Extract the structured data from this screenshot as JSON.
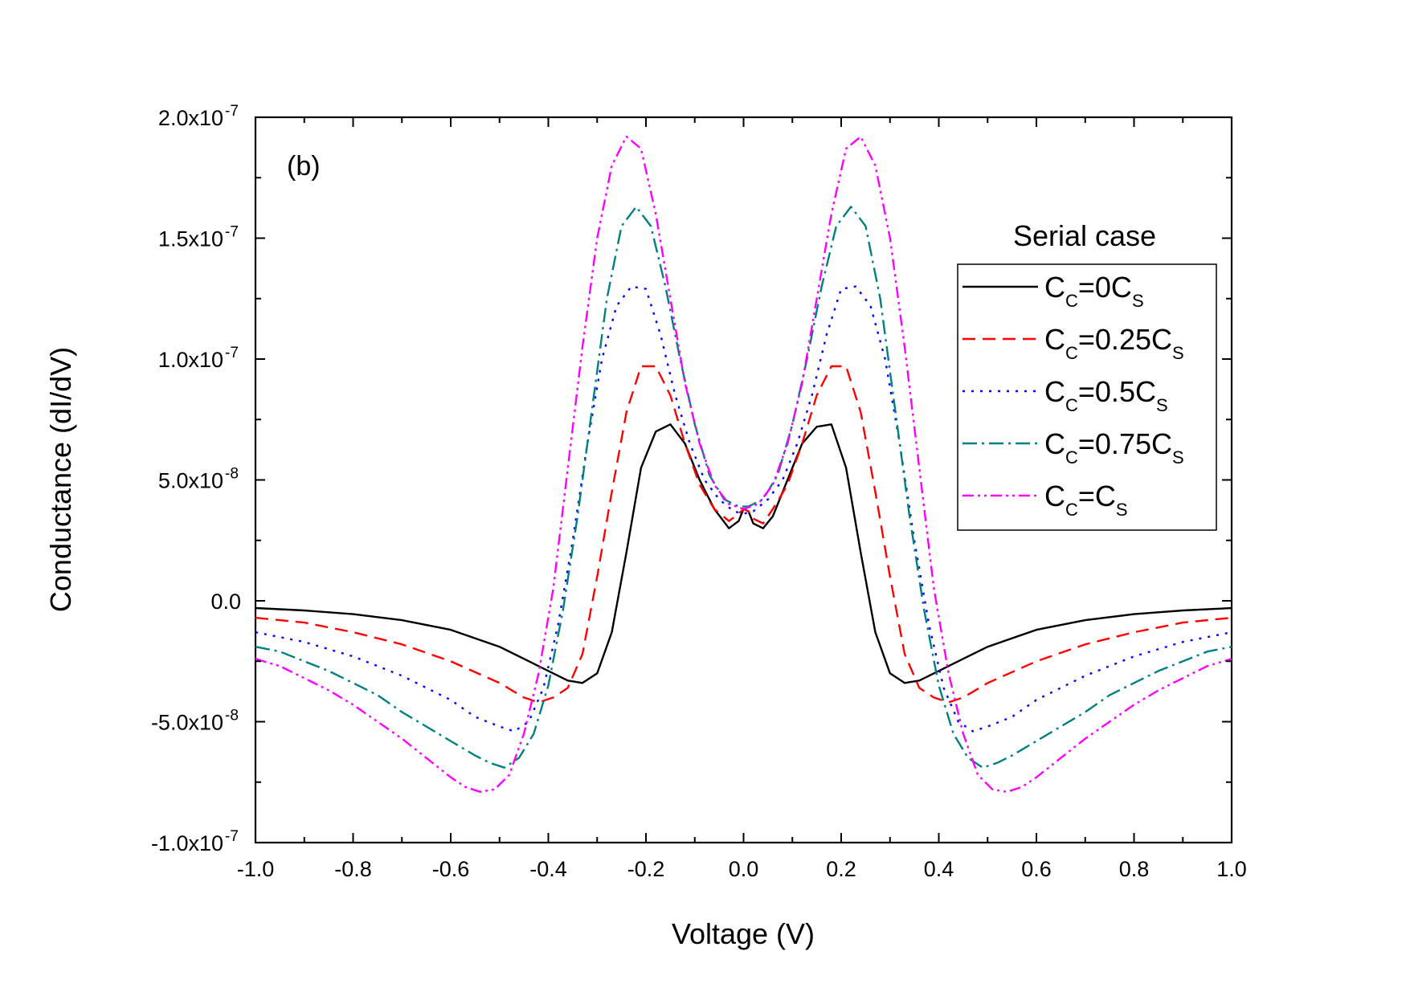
{
  "chart_data": {
    "type": "line",
    "panel_label": "(b)",
    "xlabel": "Voltage (V)",
    "ylabel": "Conductance (dI/dV)",
    "xlim": [
      -1.0,
      1.0
    ],
    "ylim": [
      -1e-07,
      2e-07
    ],
    "x_ticks": [
      -1.0,
      -0.8,
      -0.6,
      -0.4,
      -0.2,
      0.0,
      0.2,
      0.4,
      0.6,
      0.8,
      1.0
    ],
    "x_tick_labels": [
      "-1.0",
      "-0.8",
      "-0.6",
      "-0.4",
      "-0.2",
      "0.0",
      "0.2",
      "0.4",
      "0.6",
      "0.8",
      "1.0"
    ],
    "y_ticks": [
      -1e-07,
      -5e-08,
      0.0,
      5e-08,
      1e-07,
      1.5e-07,
      2e-07
    ],
    "y_tick_labels": [
      {
        "mantissa": "-1.0x10",
        "exp": "-7"
      },
      {
        "mantissa": "-5.0x10",
        "exp": "-8"
      },
      {
        "mantissa": "0.0",
        "exp": ""
      },
      {
        "mantissa": "5.0x10",
        "exp": "-8"
      },
      {
        "mantissa": "1.0x10",
        "exp": "-7"
      },
      {
        "mantissa": "1.5x10",
        "exp": "-7"
      },
      {
        "mantissa": "2.0x10",
        "exp": "-7"
      }
    ],
    "legend_title": "Serial case",
    "series": [
      {
        "name": "CC=0CS",
        "label_parts": [
          {
            "t": "C"
          },
          {
            "t": "C",
            "sub": true
          },
          {
            "t": "=0C"
          },
          {
            "t": "S",
            "sub": true
          }
        ],
        "color": "#000000",
        "dash": "",
        "x": [
          -1.0,
          -0.9,
          -0.8,
          -0.7,
          -0.6,
          -0.5,
          -0.45,
          -0.4,
          -0.36,
          -0.33,
          -0.3,
          -0.27,
          -0.24,
          -0.21,
          -0.18,
          -0.15,
          -0.12,
          -0.09,
          -0.06,
          -0.03,
          -0.01,
          0.0,
          0.01,
          0.02,
          0.04,
          0.06,
          0.09,
          0.12,
          0.15,
          0.18,
          0.21,
          0.24,
          0.27,
          0.3,
          0.33,
          0.36,
          0.4,
          0.45,
          0.5,
          0.6,
          0.7,
          0.8,
          0.9,
          1.0
        ],
        "y": [
          -3e-09,
          -4e-09,
          -5.5e-09,
          -8e-09,
          -1.2e-08,
          -1.9e-08,
          -2.4e-08,
          -2.9e-08,
          -3.3e-08,
          -3.4e-08,
          -3e-08,
          -1.3e-08,
          2e-08,
          5.5e-08,
          7e-08,
          7.3e-08,
          6.5e-08,
          5e-08,
          3.8e-08,
          3e-08,
          3.3e-08,
          3.8e-08,
          3.7e-08,
          3.2e-08,
          3e-08,
          3.5e-08,
          5e-08,
          6.5e-08,
          7.2e-08,
          7.3e-08,
          5.5e-08,
          2e-08,
          -1.3e-08,
          -3e-08,
          -3.4e-08,
          -3.3e-08,
          -2.9e-08,
          -2.4e-08,
          -1.9e-08,
          -1.2e-08,
          -8e-09,
          -5.5e-09,
          -4e-09,
          -3e-09
        ]
      },
      {
        "name": "CC=0.25CS",
        "label_parts": [
          {
            "t": "C"
          },
          {
            "t": "C",
            "sub": true
          },
          {
            "t": "=0.25C"
          },
          {
            "t": "S",
            "sub": true
          }
        ],
        "color": "#ff0000",
        "dash": "16,9",
        "x": [
          -1.0,
          -0.9,
          -0.8,
          -0.7,
          -0.6,
          -0.5,
          -0.45,
          -0.42,
          -0.39,
          -0.36,
          -0.33,
          -0.3,
          -0.27,
          -0.24,
          -0.21,
          -0.18,
          -0.15,
          -0.12,
          -0.09,
          -0.06,
          -0.03,
          -0.01,
          0.0,
          0.01,
          0.02,
          0.04,
          0.06,
          0.09,
          0.12,
          0.15,
          0.18,
          0.21,
          0.24,
          0.27,
          0.3,
          0.33,
          0.36,
          0.39,
          0.42,
          0.45,
          0.5,
          0.6,
          0.7,
          0.8,
          0.9,
          1.0
        ],
        "y": [
          -7e-09,
          -9e-09,
          -1.3e-08,
          -1.8e-08,
          -2.5e-08,
          -3.4e-08,
          -4e-08,
          -4.2e-08,
          -4e-08,
          -3.6e-08,
          -2.2e-08,
          1e-08,
          4.5e-08,
          7.8e-08,
          9.7e-08,
          9.7e-08,
          8.5e-08,
          6.5e-08,
          4.8e-08,
          3.8e-08,
          3.3e-08,
          3.6e-08,
          3.8e-08,
          3.7e-08,
          3.4e-08,
          3.2e-08,
          3.8e-08,
          4.8e-08,
          6.5e-08,
          8.5e-08,
          9.7e-08,
          9.7e-08,
          7.8e-08,
          4.5e-08,
          1e-08,
          -2.2e-08,
          -3.6e-08,
          -4e-08,
          -4.2e-08,
          -4e-08,
          -3.4e-08,
          -2.5e-08,
          -1.8e-08,
          -1.3e-08,
          -9e-09,
          -7e-09
        ]
      },
      {
        "name": "CC=0.5CS",
        "label_parts": [
          {
            "t": "C"
          },
          {
            "t": "C",
            "sub": true
          },
          {
            "t": "=0.5C"
          },
          {
            "t": "S",
            "sub": true
          }
        ],
        "color": "#0000ff",
        "dash": "3,8",
        "x": [
          -1.0,
          -0.9,
          -0.8,
          -0.7,
          -0.6,
          -0.55,
          -0.5,
          -0.47,
          -0.44,
          -0.41,
          -0.38,
          -0.35,
          -0.32,
          -0.29,
          -0.26,
          -0.23,
          -0.2,
          -0.17,
          -0.14,
          -0.11,
          -0.08,
          -0.05,
          -0.02,
          0.0,
          0.02,
          0.05,
          0.08,
          0.11,
          0.14,
          0.17,
          0.2,
          0.23,
          0.26,
          0.29,
          0.32,
          0.35,
          0.38,
          0.41,
          0.44,
          0.47,
          0.5,
          0.55,
          0.6,
          0.7,
          0.8,
          0.9,
          1.0
        ],
        "y": [
          -1.3e-08,
          -1.7e-08,
          -2.3e-08,
          -3.1e-08,
          -4.1e-08,
          -4.8e-08,
          -5.2e-08,
          -5.4e-08,
          -5e-08,
          -3.6e-08,
          -1e-08,
          2.5e-08,
          6.5e-08,
          1e-07,
          1.22e-07,
          1.3e-07,
          1.29e-07,
          1.1e-07,
          8.5e-08,
          6.5e-08,
          5e-08,
          4.2e-08,
          3.7e-08,
          3.6e-08,
          3.7e-08,
          4.2e-08,
          5e-08,
          6.5e-08,
          8.5e-08,
          1.1e-07,
          1.29e-07,
          1.3e-07,
          1.22e-07,
          1e-07,
          6.5e-08,
          2.5e-08,
          -1e-08,
          -3.6e-08,
          -5e-08,
          -5.4e-08,
          -5.2e-08,
          -4.8e-08,
          -4.1e-08,
          -3.1e-08,
          -2.3e-08,
          -1.7e-08,
          -1.3e-08
        ]
      },
      {
        "name": "CC=0.75CS",
        "label_parts": [
          {
            "t": "C"
          },
          {
            "t": "C",
            "sub": true
          },
          {
            "t": "=0.75C"
          },
          {
            "t": "S",
            "sub": true
          }
        ],
        "color": "#008080",
        "dash": "18,6,3,6",
        "x": [
          -1.0,
          -0.95,
          -0.9,
          -0.85,
          -0.8,
          -0.75,
          -0.7,
          -0.65,
          -0.6,
          -0.55,
          -0.52,
          -0.49,
          -0.46,
          -0.43,
          -0.4,
          -0.37,
          -0.34,
          -0.31,
          -0.28,
          -0.25,
          -0.22,
          -0.19,
          -0.16,
          -0.13,
          -0.1,
          -0.07,
          -0.04,
          -0.01,
          0.0,
          0.01,
          0.04,
          0.07,
          0.1,
          0.13,
          0.16,
          0.19,
          0.22,
          0.25,
          0.28,
          0.31,
          0.34,
          0.37,
          0.4,
          0.43,
          0.46,
          0.49,
          0.52,
          0.55,
          0.6,
          0.65,
          0.7,
          0.75,
          0.8,
          0.85,
          0.9,
          0.95,
          1.0
        ],
        "y": [
          -1.9e-08,
          -2.1e-08,
          -2.5e-08,
          -2.9e-08,
          -3.4e-08,
          -3.9e-08,
          -4.6e-08,
          -5.2e-08,
          -5.8e-08,
          -6.4e-08,
          -6.7e-08,
          -6.9e-08,
          -6.5e-08,
          -5.5e-08,
          -3.5e-08,
          -4e-09,
          3.5e-08,
          8e-08,
          1.25e-07,
          1.55e-07,
          1.63e-07,
          1.55e-07,
          1.3e-07,
          1e-07,
          7.3e-08,
          5.2e-08,
          4.2e-08,
          3.9e-08,
          3.9e-08,
          3.9e-08,
          4.2e-08,
          5.2e-08,
          7.3e-08,
          1e-07,
          1.3e-07,
          1.55e-07,
          1.63e-07,
          1.55e-07,
          1.25e-07,
          8e-08,
          3.5e-08,
          -4e-09,
          -3.5e-08,
          -5.5e-08,
          -6.5e-08,
          -6.9e-08,
          -6.7e-08,
          -6.4e-08,
          -5.8e-08,
          -5.2e-08,
          -4.6e-08,
          -3.9e-08,
          -3.4e-08,
          -2.9e-08,
          -2.5e-08,
          -2.1e-08,
          -1.9e-08
        ]
      },
      {
        "name": "CC=CS",
        "label_parts": [
          {
            "t": "C"
          },
          {
            "t": "C",
            "sub": true
          },
          {
            "t": "=C"
          },
          {
            "t": "S",
            "sub": true
          }
        ],
        "color": "#ff00ff",
        "dash": "14,5,3,5,3,5",
        "x": [
          -1.0,
          -0.95,
          -0.9,
          -0.85,
          -0.8,
          -0.75,
          -0.7,
          -0.65,
          -0.6,
          -0.57,
          -0.54,
          -0.51,
          -0.48,
          -0.45,
          -0.42,
          -0.39,
          -0.36,
          -0.33,
          -0.3,
          -0.27,
          -0.24,
          -0.21,
          -0.18,
          -0.15,
          -0.12,
          -0.09,
          -0.06,
          -0.03,
          0.0,
          0.03,
          0.06,
          0.09,
          0.12,
          0.15,
          0.18,
          0.21,
          0.24,
          0.27,
          0.3,
          0.33,
          0.36,
          0.39,
          0.42,
          0.45,
          0.48,
          0.51,
          0.54,
          0.57,
          0.6,
          0.65,
          0.7,
          0.75,
          0.8,
          0.85,
          0.9,
          0.95,
          1.0
        ],
        "y": [
          -2.4e-08,
          -2.7e-08,
          -3.2e-08,
          -3.7e-08,
          -4.3e-08,
          -5e-08,
          -5.7e-08,
          -6.5e-08,
          -7.3e-08,
          -7.7e-08,
          -7.9e-08,
          -7.8e-08,
          -7.2e-08,
          -5.5e-08,
          -3e-08,
          5e-09,
          5.5e-08,
          1.05e-07,
          1.5e-07,
          1.8e-07,
          1.92e-07,
          1.87e-07,
          1.6e-07,
          1.25e-07,
          9e-08,
          6.5e-08,
          4.8e-08,
          4e-08,
          3.8e-08,
          4e-08,
          4.8e-08,
          6.5e-08,
          9e-08,
          1.25e-07,
          1.6e-07,
          1.87e-07,
          1.92e-07,
          1.8e-07,
          1.5e-07,
          1.05e-07,
          5.5e-08,
          5e-09,
          -3e-08,
          -5.5e-08,
          -7.2e-08,
          -7.8e-08,
          -7.9e-08,
          -7.7e-08,
          -7.3e-08,
          -6.5e-08,
          -5.7e-08,
          -5e-08,
          -4.3e-08,
          -3.7e-08,
          -3.2e-08,
          -2.7e-08,
          -2.4e-08
        ]
      }
    ]
  }
}
